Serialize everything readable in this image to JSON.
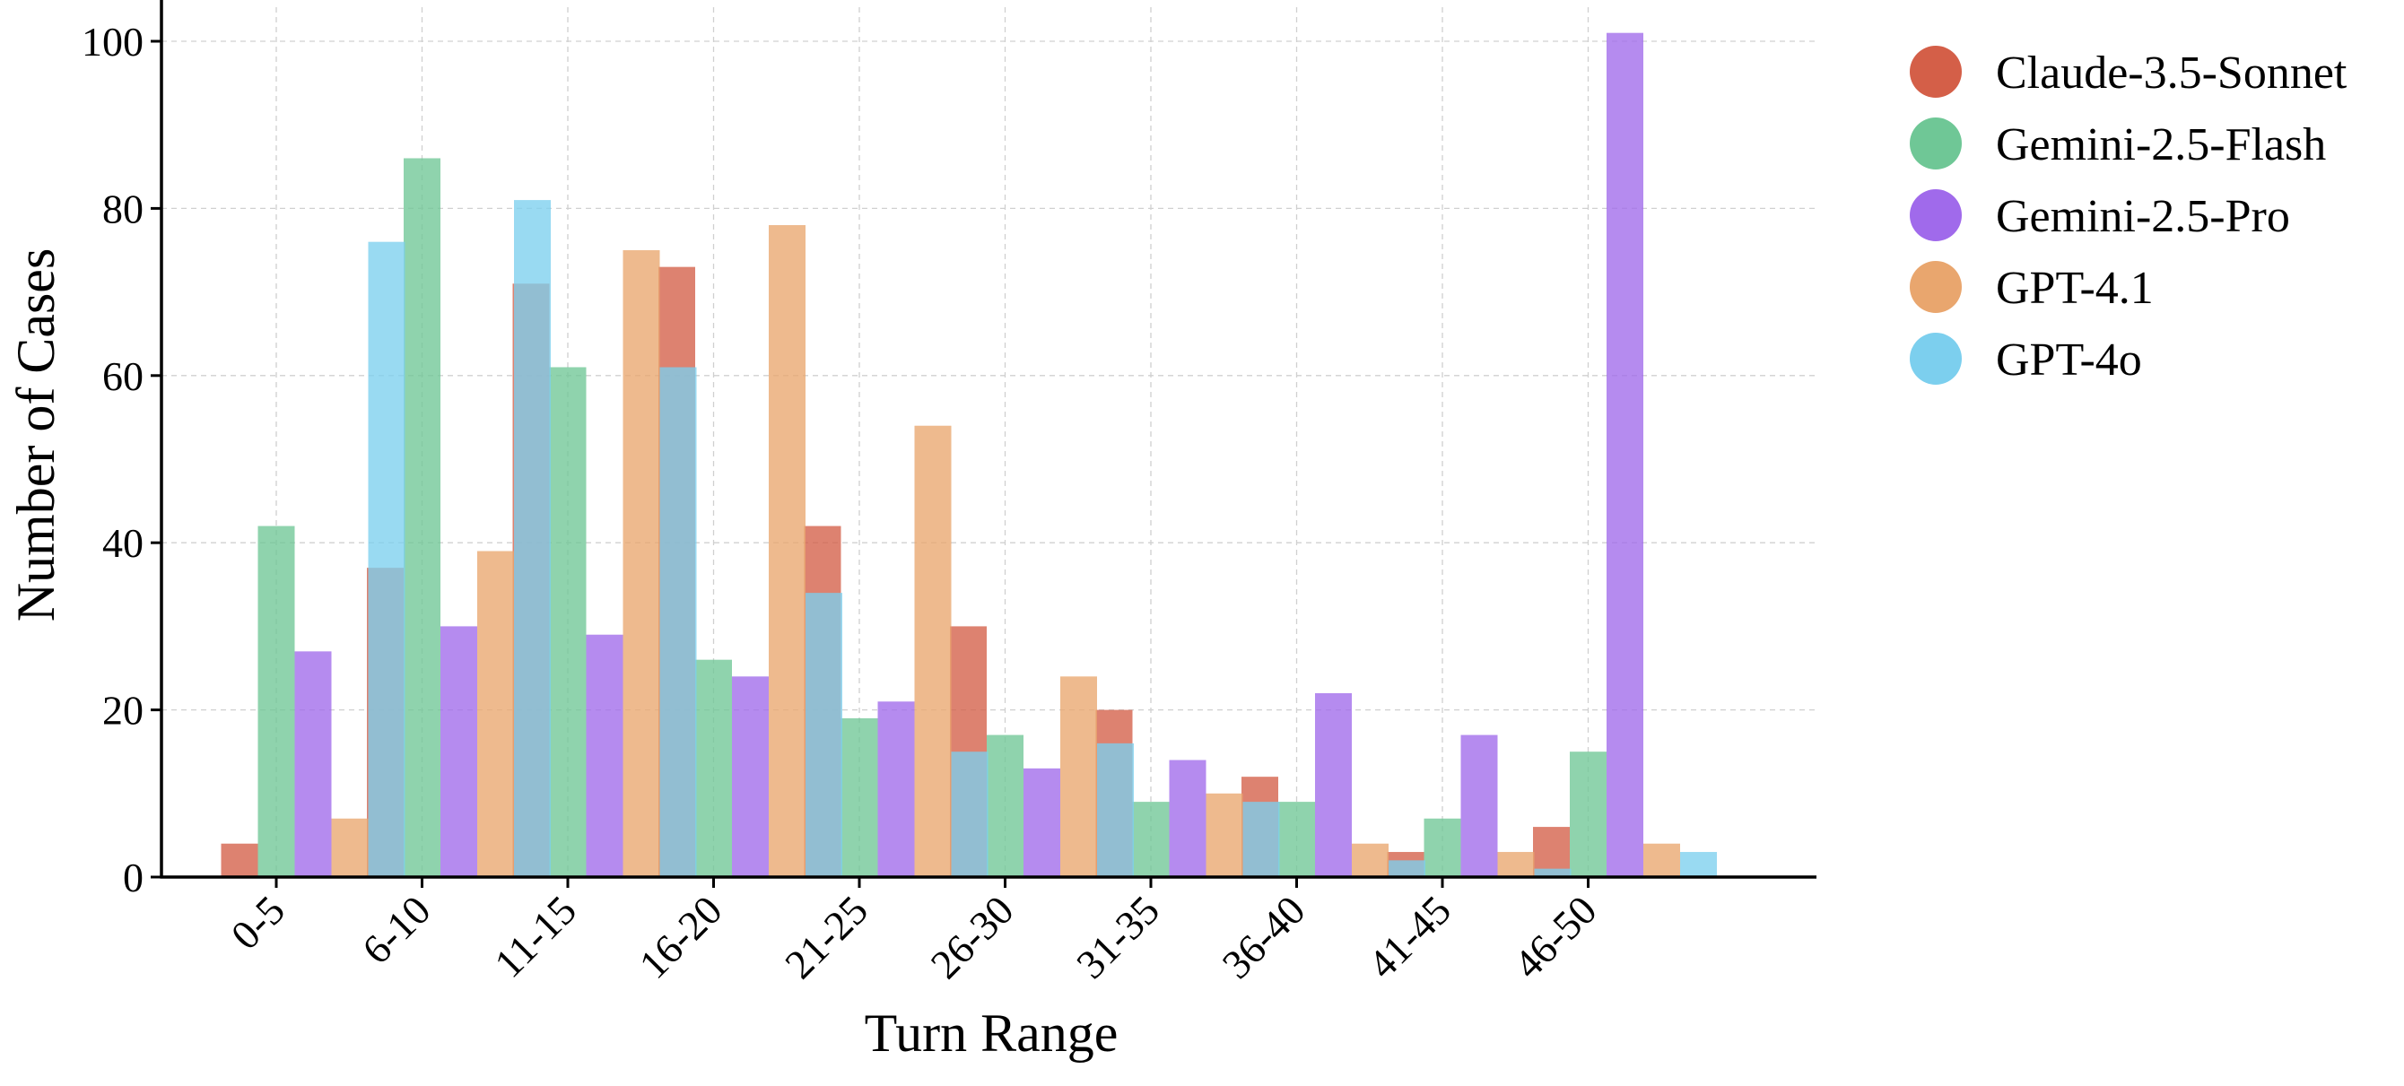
{
  "chart_data": {
    "type": "bar",
    "title": "",
    "xlabel": "Turn Range",
    "ylabel": "Number of Cases",
    "categories": [
      "0-5",
      "6-10",
      "11-15",
      "16-20",
      "21-25",
      "26-30",
      "31-35",
      "36-40",
      "41-45",
      "46-50"
    ],
    "ylim": [
      0,
      105
    ],
    "yticks": [
      0,
      20,
      40,
      60,
      80,
      100
    ],
    "grid": true,
    "legend_position": "outside-top-right",
    "series": [
      {
        "name": "Claude-3.5-Sonnet",
        "color": "#D45F48",
        "values": [
          4,
          37,
          71,
          73,
          42,
          30,
          20,
          12,
          3,
          6
        ]
      },
      {
        "name": "Gemini-2.5-Flash",
        "color": "#6FC796",
        "values": [
          42,
          86,
          61,
          26,
          19,
          17,
          9,
          9,
          7,
          15
        ]
      },
      {
        "name": "Gemini-2.5-Pro",
        "color": "#A06AEB",
        "values": [
          27,
          30,
          29,
          24,
          21,
          13,
          14,
          22,
          17,
          101
        ]
      },
      {
        "name": "GPT-4.1",
        "color": "#E9A66E",
        "values": [
          7,
          39,
          75,
          78,
          54,
          24,
          10,
          4,
          3,
          4
        ]
      },
      {
        "name": "GPT-4o",
        "color": "#7CCFEE",
        "values": [
          76,
          81,
          61,
          34,
          15,
          16,
          9,
          2,
          1,
          3
        ]
      }
    ]
  }
}
